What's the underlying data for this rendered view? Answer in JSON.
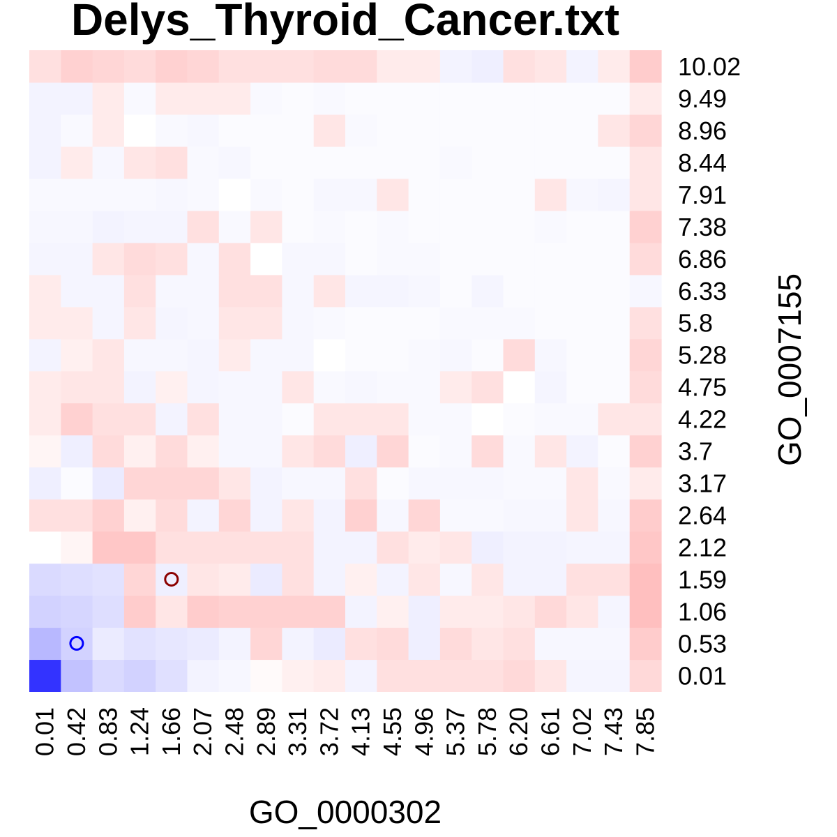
{
  "chart_data": {
    "type": "heatmap",
    "title": "Delys_Thyroid_Cancer.txt",
    "xlabel": "GO_0000302",
    "ylabel": "GO_0007155",
    "x_ticks": [
      "0.01",
      "0.42",
      "0.83",
      "1.24",
      "1.66",
      "2.07",
      "2.48",
      "2.89",
      "3.31",
      "3.72",
      "4.13",
      "4.55",
      "4.96",
      "5.37",
      "5.78",
      "6.20",
      "6.61",
      "7.02",
      "7.43",
      "7.85"
    ],
    "y_ticks": [
      "0.01",
      "0.53",
      "1.06",
      "1.59",
      "2.12",
      "2.64",
      "3.17",
      "3.7",
      "4.22",
      "4.75",
      "5.28",
      "5.8",
      "6.33",
      "6.86",
      "7.38",
      "7.91",
      "8.44",
      "8.96",
      "9.49",
      "10.02"
    ],
    "color_scale": {
      "negative": "#3333ff",
      "neutral": "#ffffff",
      "positive": "#ff0000",
      "range": [
        -1,
        1
      ]
    },
    "values": [
      [
        -1.0,
        -0.3,
        -0.18,
        -0.22,
        -0.15,
        -0.06,
        -0.04,
        0.02,
        0.06,
        0.08,
        -0.06,
        0.12,
        0.12,
        0.12,
        0.12,
        0.15,
        0.1,
        -0.05,
        -0.05,
        0.15
      ],
      [
        -0.35,
        -0.22,
        -0.1,
        -0.14,
        -0.12,
        -0.1,
        -0.06,
        0.16,
        -0.06,
        -0.1,
        0.12,
        0.14,
        -0.08,
        0.14,
        0.1,
        0.12,
        -0.04,
        -0.04,
        -0.04,
        0.2
      ],
      [
        -0.22,
        -0.2,
        -0.16,
        0.2,
        0.1,
        0.2,
        0.18,
        0.18,
        0.18,
        0.18,
        -0.06,
        0.06,
        -0.08,
        0.08,
        0.08,
        0.1,
        0.15,
        0.1,
        -0.05,
        0.25
      ],
      [
        -0.18,
        -0.16,
        -0.14,
        0.16,
        -0.08,
        0.1,
        0.08,
        -0.1,
        0.12,
        -0.06,
        0.06,
        -0.06,
        0.1,
        -0.04,
        0.1,
        -0.06,
        -0.06,
        0.12,
        0.12,
        0.25
      ],
      [
        0.0,
        0.04,
        0.22,
        0.22,
        0.12,
        0.12,
        0.12,
        0.12,
        0.12,
        -0.06,
        -0.06,
        0.12,
        0.08,
        0.1,
        -0.08,
        -0.06,
        -0.06,
        -0.05,
        -0.05,
        0.22
      ],
      [
        0.12,
        0.12,
        0.18,
        0.06,
        0.14,
        -0.06,
        0.16,
        -0.06,
        0.1,
        -0.06,
        0.18,
        -0.04,
        0.16,
        -0.03,
        -0.03,
        -0.04,
        -0.04,
        0.1,
        -0.04,
        0.2
      ],
      [
        -0.08,
        -0.02,
        -0.1,
        0.16,
        0.16,
        0.16,
        0.1,
        -0.06,
        -0.04,
        -0.04,
        0.12,
        -0.02,
        -0.04,
        -0.04,
        -0.04,
        -0.03,
        -0.03,
        0.1,
        -0.03,
        0.08
      ],
      [
        0.04,
        -0.08,
        0.14,
        0.06,
        0.14,
        0.06,
        -0.04,
        -0.04,
        0.1,
        0.14,
        -0.08,
        0.16,
        -0.02,
        -0.03,
        0.14,
        -0.03,
        0.1,
        -0.06,
        -0.02,
        0.18
      ],
      [
        0.08,
        0.18,
        0.12,
        0.12,
        -0.06,
        0.12,
        -0.04,
        -0.04,
        -0.02,
        0.1,
        0.1,
        0.1,
        -0.03,
        -0.03,
        0.0,
        -0.02,
        -0.03,
        -0.03,
        0.1,
        0.1
      ],
      [
        0.08,
        0.1,
        0.1,
        -0.06,
        0.06,
        -0.05,
        -0.04,
        -0.04,
        0.1,
        -0.03,
        -0.04,
        -0.03,
        -0.03,
        0.08,
        0.12,
        0.0,
        -0.05,
        -0.02,
        -0.02,
        0.14
      ],
      [
        -0.06,
        0.06,
        0.1,
        -0.04,
        -0.04,
        -0.05,
        0.08,
        -0.04,
        -0.04,
        0.0,
        -0.02,
        -0.02,
        -0.03,
        -0.04,
        -0.02,
        0.14,
        -0.04,
        -0.02,
        -0.02,
        0.16
      ],
      [
        0.08,
        0.08,
        -0.05,
        0.1,
        -0.05,
        -0.04,
        0.1,
        0.1,
        -0.04,
        -0.03,
        -0.02,
        -0.02,
        -0.02,
        -0.03,
        -0.03,
        -0.03,
        -0.02,
        -0.02,
        -0.02,
        0.12
      ],
      [
        0.08,
        -0.05,
        -0.05,
        0.12,
        -0.04,
        -0.04,
        0.12,
        0.12,
        -0.04,
        0.1,
        -0.05,
        -0.05,
        -0.04,
        -0.02,
        -0.05,
        -0.02,
        -0.02,
        -0.02,
        -0.02,
        -0.04
      ],
      [
        -0.05,
        -0.05,
        0.1,
        0.14,
        0.12,
        -0.04,
        0.12,
        0.0,
        -0.04,
        -0.04,
        -0.02,
        -0.03,
        -0.03,
        -0.02,
        -0.02,
        -0.02,
        -0.02,
        -0.02,
        -0.02,
        0.14
      ],
      [
        -0.04,
        -0.04,
        -0.06,
        -0.05,
        -0.05,
        0.12,
        -0.03,
        0.1,
        -0.02,
        -0.03,
        -0.02,
        -0.03,
        -0.02,
        -0.02,
        -0.02,
        -0.02,
        -0.03,
        -0.02,
        -0.02,
        0.18
      ],
      [
        -0.03,
        -0.03,
        -0.03,
        -0.03,
        -0.04,
        -0.03,
        0.0,
        -0.03,
        -0.02,
        -0.04,
        -0.04,
        0.1,
        -0.02,
        -0.02,
        -0.02,
        -0.02,
        0.1,
        -0.04,
        -0.05,
        0.1
      ],
      [
        -0.06,
        0.08,
        -0.04,
        0.1,
        0.12,
        -0.03,
        -0.04,
        -0.02,
        -0.02,
        -0.02,
        -0.02,
        -0.02,
        -0.02,
        -0.03,
        -0.02,
        -0.02,
        -0.02,
        -0.02,
        -0.02,
        0.1
      ],
      [
        -0.06,
        -0.03,
        0.08,
        0.0,
        -0.03,
        -0.04,
        -0.02,
        -0.02,
        -0.02,
        0.1,
        -0.03,
        -0.02,
        -0.02,
        -0.02,
        -0.02,
        -0.02,
        -0.02,
        -0.02,
        0.1,
        0.16
      ],
      [
        -0.06,
        -0.06,
        0.08,
        -0.03,
        0.08,
        0.08,
        0.08,
        -0.03,
        -0.02,
        -0.03,
        -0.02,
        -0.02,
        -0.02,
        -0.02,
        -0.02,
        -0.02,
        -0.02,
        -0.02,
        -0.02,
        0.08
      ],
      [
        0.12,
        0.18,
        0.16,
        0.14,
        0.18,
        0.16,
        0.12,
        0.12,
        0.12,
        0.14,
        0.14,
        0.08,
        0.08,
        -0.06,
        -0.08,
        0.12,
        0.1,
        -0.06,
        0.08,
        0.2
      ]
    ],
    "markers": [
      {
        "x": "0.42",
        "y": "0.53",
        "color": "#0000ff"
      },
      {
        "x": "1.66",
        "y": "1.59",
        "color": "#8b0000"
      }
    ]
  }
}
